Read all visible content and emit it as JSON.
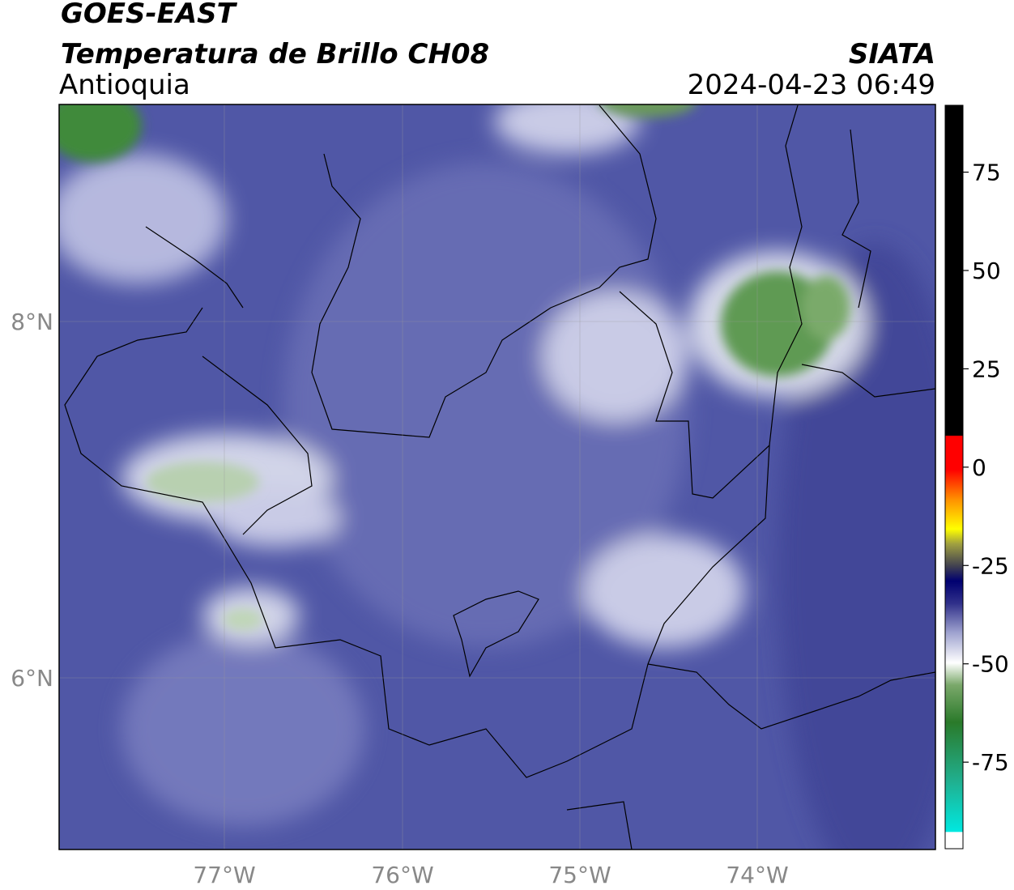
{
  "header": {
    "title": "GOES-EAST",
    "subtitle": "Temperatura de Brillo CH08",
    "region": "Antioquia",
    "source": "SIATA",
    "datetime": "2024-04-23 06:49"
  },
  "map": {
    "lat_labels": [
      "8°N",
      "6°N"
    ],
    "lon_labels": [
      "77°W",
      "76°W",
      "75°W",
      "74°W"
    ]
  },
  "colorbar": {
    "range": [
      -97,
      92
    ],
    "ticks": [
      75,
      50,
      25,
      0,
      -25,
      -50,
      -75
    ]
  }
}
